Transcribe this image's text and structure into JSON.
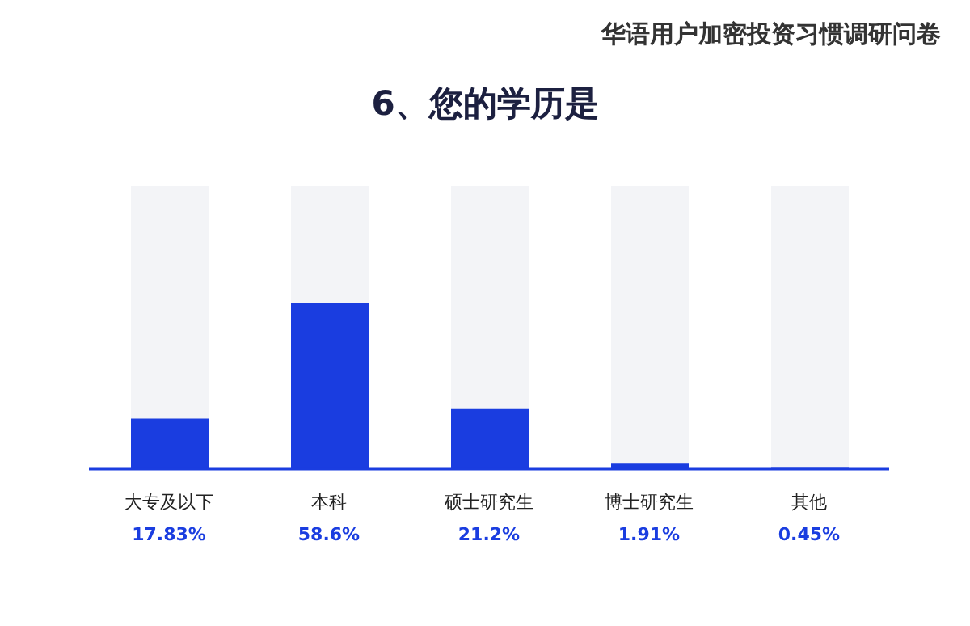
{
  "chart_data": {
    "type": "bar",
    "title": "6、您的学历是",
    "subtitle": "华语用户加密投资习惯调研问卷",
    "categories": [
      "大专及以下",
      "本科",
      "硕士研究生",
      "博士研究生",
      "其他"
    ],
    "values": [
      17.83,
      58.6,
      21.2,
      1.91,
      0.45
    ],
    "value_labels": [
      "17.83%",
      "58.6%",
      "21.2%",
      "1.91%",
      "0.45%"
    ],
    "color": "#1a3de0",
    "ylim": [
      0,
      100
    ],
    "tick_labels": "x"
  }
}
